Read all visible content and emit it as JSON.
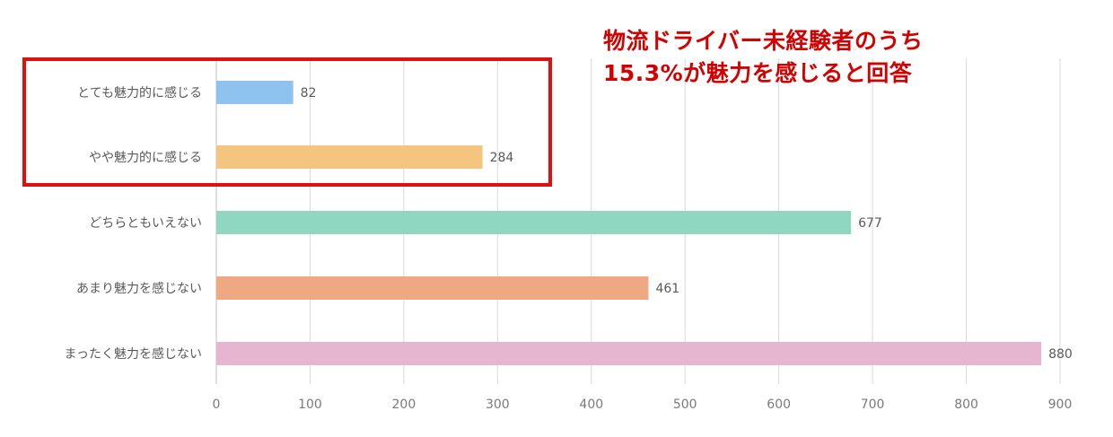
{
  "chart_data": {
    "type": "bar",
    "orientation": "horizontal",
    "categories": [
      "とても魅力的に感じる",
      "やや魅力的に感じる",
      "どちらともいえない",
      "あまり魅力を感じない",
      "まったく魅力を感じない"
    ],
    "values": [
      82,
      284,
      677,
      461,
      880
    ],
    "colors": [
      "#8ec2ef",
      "#f3c57f",
      "#90d7c2",
      "#f0a882",
      "#e6b5cf"
    ],
    "xlim": [
      0,
      900
    ],
    "xticks": [
      0,
      100,
      200,
      300,
      400,
      500,
      600,
      700,
      800,
      900
    ],
    "grid": true,
    "title": "",
    "xlabel": "",
    "ylabel": ""
  },
  "annotation": {
    "line1": "物流ドライバー未経験者のうち",
    "line2": "15.3%が魅力を感じると回答",
    "color": "#d40000",
    "highlight_color": "#e01010"
  }
}
